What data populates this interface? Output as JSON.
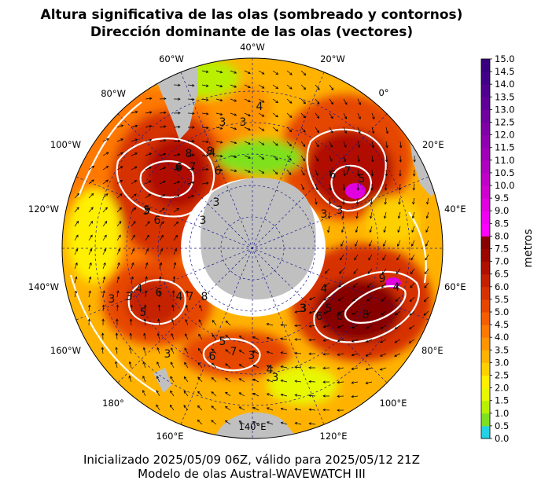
{
  "title_line1": "Altura significativa de las olas (sombreado y contornos)",
  "title_line2": "Dirección dominante de las olas (vectores)",
  "caption_line1": "Inicializado 2025/05/09 06Z, válido para 2025/05/12 21Z",
  "caption_line2": "Modelo de olas Austral-WAVEWATCH III",
  "colorbar": {
    "unit_label": "metros",
    "ticks": [
      "0.0",
      "0.5",
      "1.0",
      "1.5",
      "2.0",
      "2.5",
      "3.0",
      "3.5",
      "4.0",
      "4.5",
      "5.0",
      "5.5",
      "6.0",
      "6.5",
      "7.0",
      "7.5",
      "8.0",
      "8.5",
      "9.0",
      "9.5",
      "10.0",
      "10.5",
      "11.0",
      "11.5",
      "12.0",
      "12.5",
      "13.0",
      "13.5",
      "14.0",
      "14.5",
      "15.0"
    ],
    "colors": [
      "#22d3e6",
      "#7ee11f",
      "#b8f000",
      "#e8f800",
      "#fff000",
      "#ffd000",
      "#ffb300",
      "#ff9400",
      "#ff7800",
      "#f45e00",
      "#e64600",
      "#d63200",
      "#c42000",
      "#b01000",
      "#9c0600",
      "#870000",
      "#ff00ff",
      "#f000f0",
      "#e000e0",
      "#d000d0",
      "#c000c8",
      "#b000c0",
      "#a000b8",
      "#9000b0",
      "#8000a8",
      "#7000a0",
      "#600098",
      "#500090",
      "#420088",
      "#380080"
    ]
  },
  "longitude_labels": [
    "40°W",
    "20°W",
    "0°",
    "20°E",
    "40°E",
    "60°E",
    "80°E",
    "100°E",
    "120°E",
    "140°E",
    "160°E",
    "180°",
    "160°W",
    "140°W",
    "120°W",
    "100°W",
    "80°W",
    "60°W"
  ],
  "contour_labels": [
    "3",
    "3",
    "3",
    "4",
    "3",
    "3",
    "6",
    "7",
    "8",
    "6",
    "4",
    "8",
    "7",
    "6",
    "3",
    "3",
    "5",
    "6",
    "5",
    "6",
    "7",
    "8",
    "3",
    "3",
    "4",
    "6",
    "5",
    "4",
    "3",
    "3",
    "5",
    "6",
    "7",
    "8",
    "9",
    "6",
    "5",
    "4",
    "3",
    "3",
    "4",
    "3",
    "3",
    "6",
    "4"
  ],
  "map_colors": {
    "land": "#c0c0c0",
    "ice": "#ffffff",
    "contour": "#ffffff",
    "grid": "#1a1a8c"
  }
}
